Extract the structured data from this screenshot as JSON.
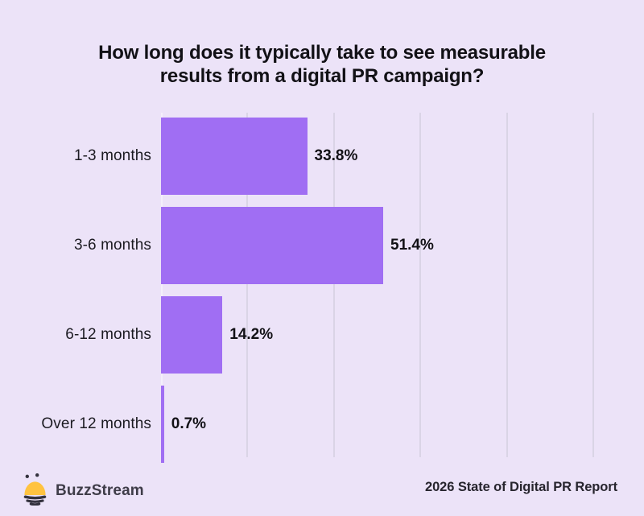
{
  "title": {
    "text": "How long does it typically take to see measurable results from a digital PR campaign?",
    "lines": [
      "How long does it typically take to see measurable",
      "results from a digital PR campaign?"
    ]
  },
  "chart_data": {
    "type": "bar",
    "orientation": "horizontal",
    "title": "How long does it typically take to see measurable results from a digital PR campaign?",
    "categories": [
      "1-3 months",
      "3-6 months",
      "6-12 months",
      "Over 12 months"
    ],
    "values": [
      33.8,
      51.4,
      14.2,
      0.7
    ],
    "value_labels": [
      "33.8%",
      "51.4%",
      "14.2%",
      "0.7%"
    ],
    "unit": "%",
    "xlim": [
      0,
      100
    ],
    "gridlines_pct": [
      20,
      40,
      60,
      80,
      100
    ],
    "grid": true,
    "legend": false
  },
  "colors": {
    "background": "#ECE3F8",
    "bar": "#A06EF3",
    "gridline": "#DAD4E6",
    "axis": "#F4EFFB",
    "title_text": "#121116",
    "label_text": "#1C1B22",
    "value_text": "#121116",
    "brand_text": "#3F3D49",
    "report_text": "#27252E",
    "bee_yellow": "#FFC340",
    "bee_dark": "#34323E"
  },
  "footer": {
    "brand": "BuzzStream",
    "report": "2026 State of Digital PR Report",
    "logo_icon": "buzzstream-bee-icon"
  }
}
